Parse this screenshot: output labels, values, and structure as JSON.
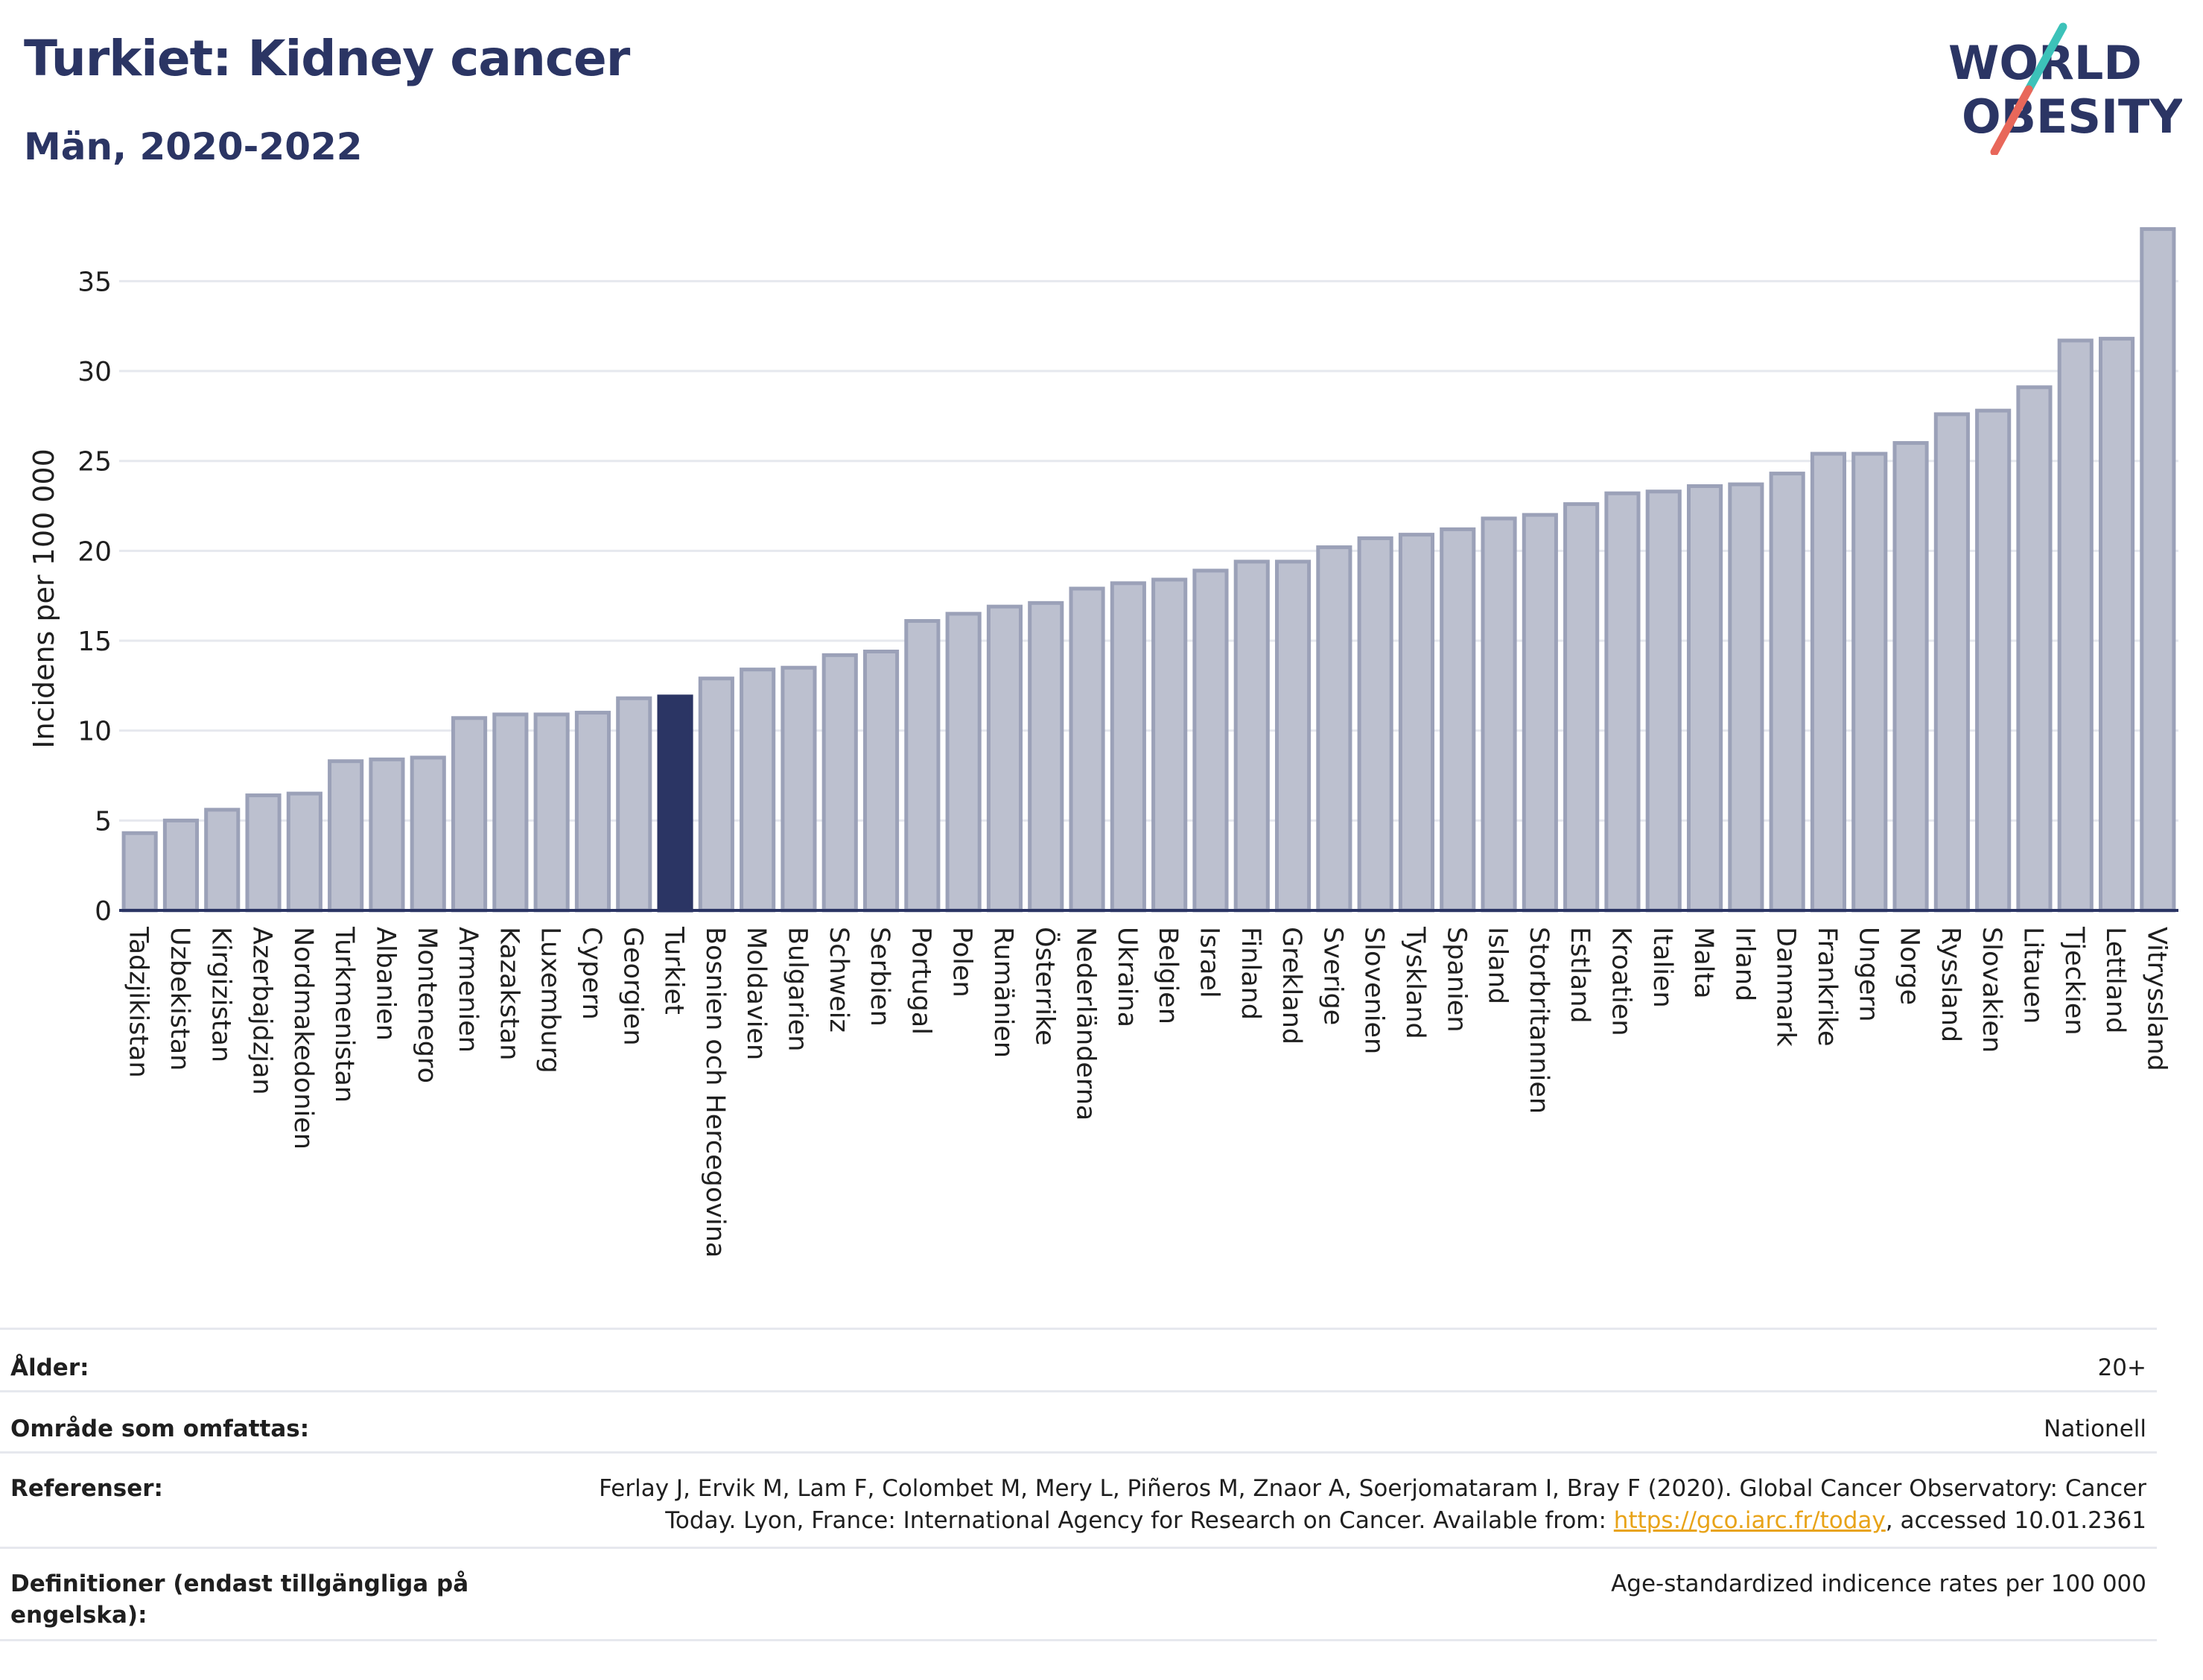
{
  "header": {
    "title": "Turkiet: Kidney cancer",
    "subtitle": "Män, 2020-2022"
  },
  "logo": {
    "line1": "WORLD",
    "line2": "OBESITY",
    "slash_color_top": "#3cc2b9",
    "slash_color_bottom": "#e8675a"
  },
  "colors": {
    "bar_default": "#bcc0cf",
    "bar_border": "#9ba1b8",
    "bar_highlight": "#2b3564",
    "text_dark": "#2b3564",
    "link": "#e8a318"
  },
  "chart_data": {
    "type": "bar",
    "ylabel": "Incidens per 100 000",
    "ylim": [
      0,
      38
    ],
    "yticks": [
      0,
      5,
      10,
      15,
      20,
      25,
      30,
      35
    ],
    "grid": true,
    "highlight": "Turkiet",
    "categories": [
      "Tadzjikistan",
      "Uzbekistan",
      "Kirgizistan",
      "Azerbajdzjan",
      "Nordmakedonien",
      "Turkmenistan",
      "Albanien",
      "Montenegro",
      "Armenien",
      "Kazakstan",
      "Luxemburg",
      "Cypern",
      "Georgien",
      "Turkiet",
      "Bosnien och Hercegovina",
      "Moldavien",
      "Bulgarien",
      "Schweiz",
      "Serbien",
      "Portugal",
      "Polen",
      "Rumänien",
      "Österrike",
      "Nederländerna",
      "Ukraina",
      "Belgien",
      "Israel",
      "Finland",
      "Grekland",
      "Sverige",
      "Slovenien",
      "Tyskland",
      "Spanien",
      "Island",
      "Storbritannien",
      "Estland",
      "Kroatien",
      "Italien",
      "Malta",
      "Irland",
      "Danmark",
      "Frankrike",
      "Ungern",
      "Norge",
      "Ryssland",
      "Slovakien",
      "Litauen",
      "Tjeckien",
      "Lettland",
      "Vitryssland"
    ],
    "values": [
      4.3,
      5.0,
      5.6,
      6.4,
      6.5,
      8.3,
      8.4,
      8.5,
      10.7,
      10.9,
      10.9,
      11.0,
      11.8,
      11.9,
      12.9,
      13.4,
      13.5,
      14.2,
      14.4,
      16.1,
      16.5,
      16.9,
      17.1,
      17.9,
      18.2,
      18.4,
      18.9,
      19.4,
      19.4,
      20.2,
      20.7,
      20.9,
      21.2,
      21.8,
      22.0,
      22.6,
      23.2,
      23.3,
      23.6,
      23.7,
      24.3,
      25.4,
      25.4,
      26.0,
      27.6,
      27.8,
      29.1,
      31.7,
      31.8,
      37.9
    ]
  },
  "meta": {
    "age_label": "Ålder:",
    "age_value": "20+",
    "area_label": "Område som omfattas:",
    "area_value": "Nationell",
    "ref_label": "Referenser:",
    "ref_text_1": "Ferlay J, Ervik M, Lam F, Colombet M, Mery L, Piñeros M, Znaor A, Soerjomataram I, Bray F (2020). Global Cancer Observatory: Cancer",
    "ref_text_2a": "Today. Lyon, France: International Agency for Research on Cancer. Available from: ",
    "ref_link": "https://gco.iarc.fr/today",
    "ref_text_2b": ", accessed 10.01.2361",
    "def_label": "Definitioner (endast tillgängliga på engelska):",
    "def_value": "Age-standardized indicence rates per 100 000"
  }
}
